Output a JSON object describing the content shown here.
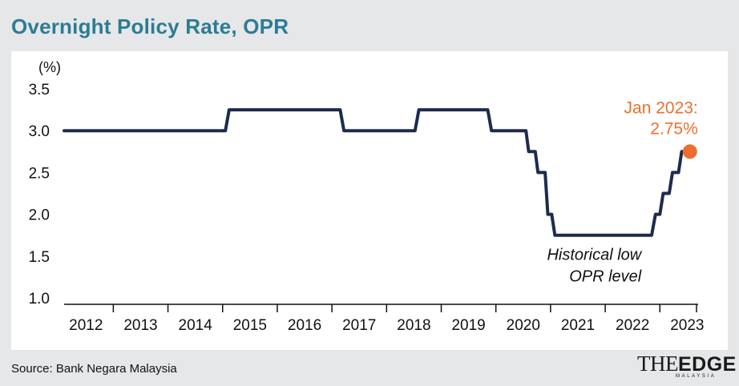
{
  "title": "Overnight Policy Rate, OPR",
  "source": "Source: Bank Negara Malaysia",
  "logo": {
    "text_the": "THE",
    "text_edge": "EDGE",
    "text_sub": "MALAYSIA"
  },
  "colors": {
    "title": "#2c7c94",
    "line": "#1d2b4f",
    "highlight": "#ec6f2d",
    "background": "#e6e7e8",
    "panel": "#ffffff"
  },
  "chart_data": {
    "type": "line",
    "title": "Overnight Policy Rate, OPR",
    "ylabel": "(%)",
    "xlabel": "",
    "ylim": [
      1.0,
      3.5
    ],
    "xlim": [
      2011.6,
      2023.2
    ],
    "yticks": [
      1.0,
      1.5,
      2.0,
      2.5,
      3.0,
      3.5
    ],
    "ytick_labels": [
      "1.0",
      "1.5",
      "2.0",
      "2.5",
      "3.0",
      "3.5"
    ],
    "xtick_labels": [
      "2012",
      "2013",
      "2014",
      "2015",
      "2016",
      "2017",
      "2018",
      "2019",
      "2020",
      "2021",
      "2022",
      "2023"
    ],
    "grid": false,
    "series": [
      {
        "name": "OPR",
        "points": [
          {
            "x": 2011.6,
            "y": 3.0
          },
          {
            "x": 2014.55,
            "y": 3.0
          },
          {
            "x": 2014.62,
            "y": 3.25
          },
          {
            "x": 2016.65,
            "y": 3.25
          },
          {
            "x": 2016.72,
            "y": 3.0
          },
          {
            "x": 2018.02,
            "y": 3.0
          },
          {
            "x": 2018.09,
            "y": 3.25
          },
          {
            "x": 2019.35,
            "y": 3.25
          },
          {
            "x": 2019.42,
            "y": 3.0
          },
          {
            "x": 2020.05,
            "y": 3.0
          },
          {
            "x": 2020.1,
            "y": 2.75
          },
          {
            "x": 2020.22,
            "y": 2.75
          },
          {
            "x": 2020.27,
            "y": 2.5
          },
          {
            "x": 2020.4,
            "y": 2.5
          },
          {
            "x": 2020.45,
            "y": 2.0
          },
          {
            "x": 2020.52,
            "y": 2.0
          },
          {
            "x": 2020.58,
            "y": 1.75
          },
          {
            "x": 2022.35,
            "y": 1.75
          },
          {
            "x": 2022.42,
            "y": 2.0
          },
          {
            "x": 2022.5,
            "y": 2.0
          },
          {
            "x": 2022.56,
            "y": 2.25
          },
          {
            "x": 2022.67,
            "y": 2.25
          },
          {
            "x": 2022.73,
            "y": 2.5
          },
          {
            "x": 2022.84,
            "y": 2.5
          },
          {
            "x": 2022.9,
            "y": 2.75
          },
          {
            "x": 2023.05,
            "y": 2.75
          }
        ]
      }
    ],
    "highlight_point": {
      "x": 2023.05,
      "y": 2.75,
      "label_line1": "Jan 2023:",
      "label_line2": "2.75%"
    },
    "annotations": [
      {
        "text_line1": "Historical low",
        "text_line2": "OPR level",
        "x": 2021.4,
        "y": 1.75
      }
    ]
  }
}
